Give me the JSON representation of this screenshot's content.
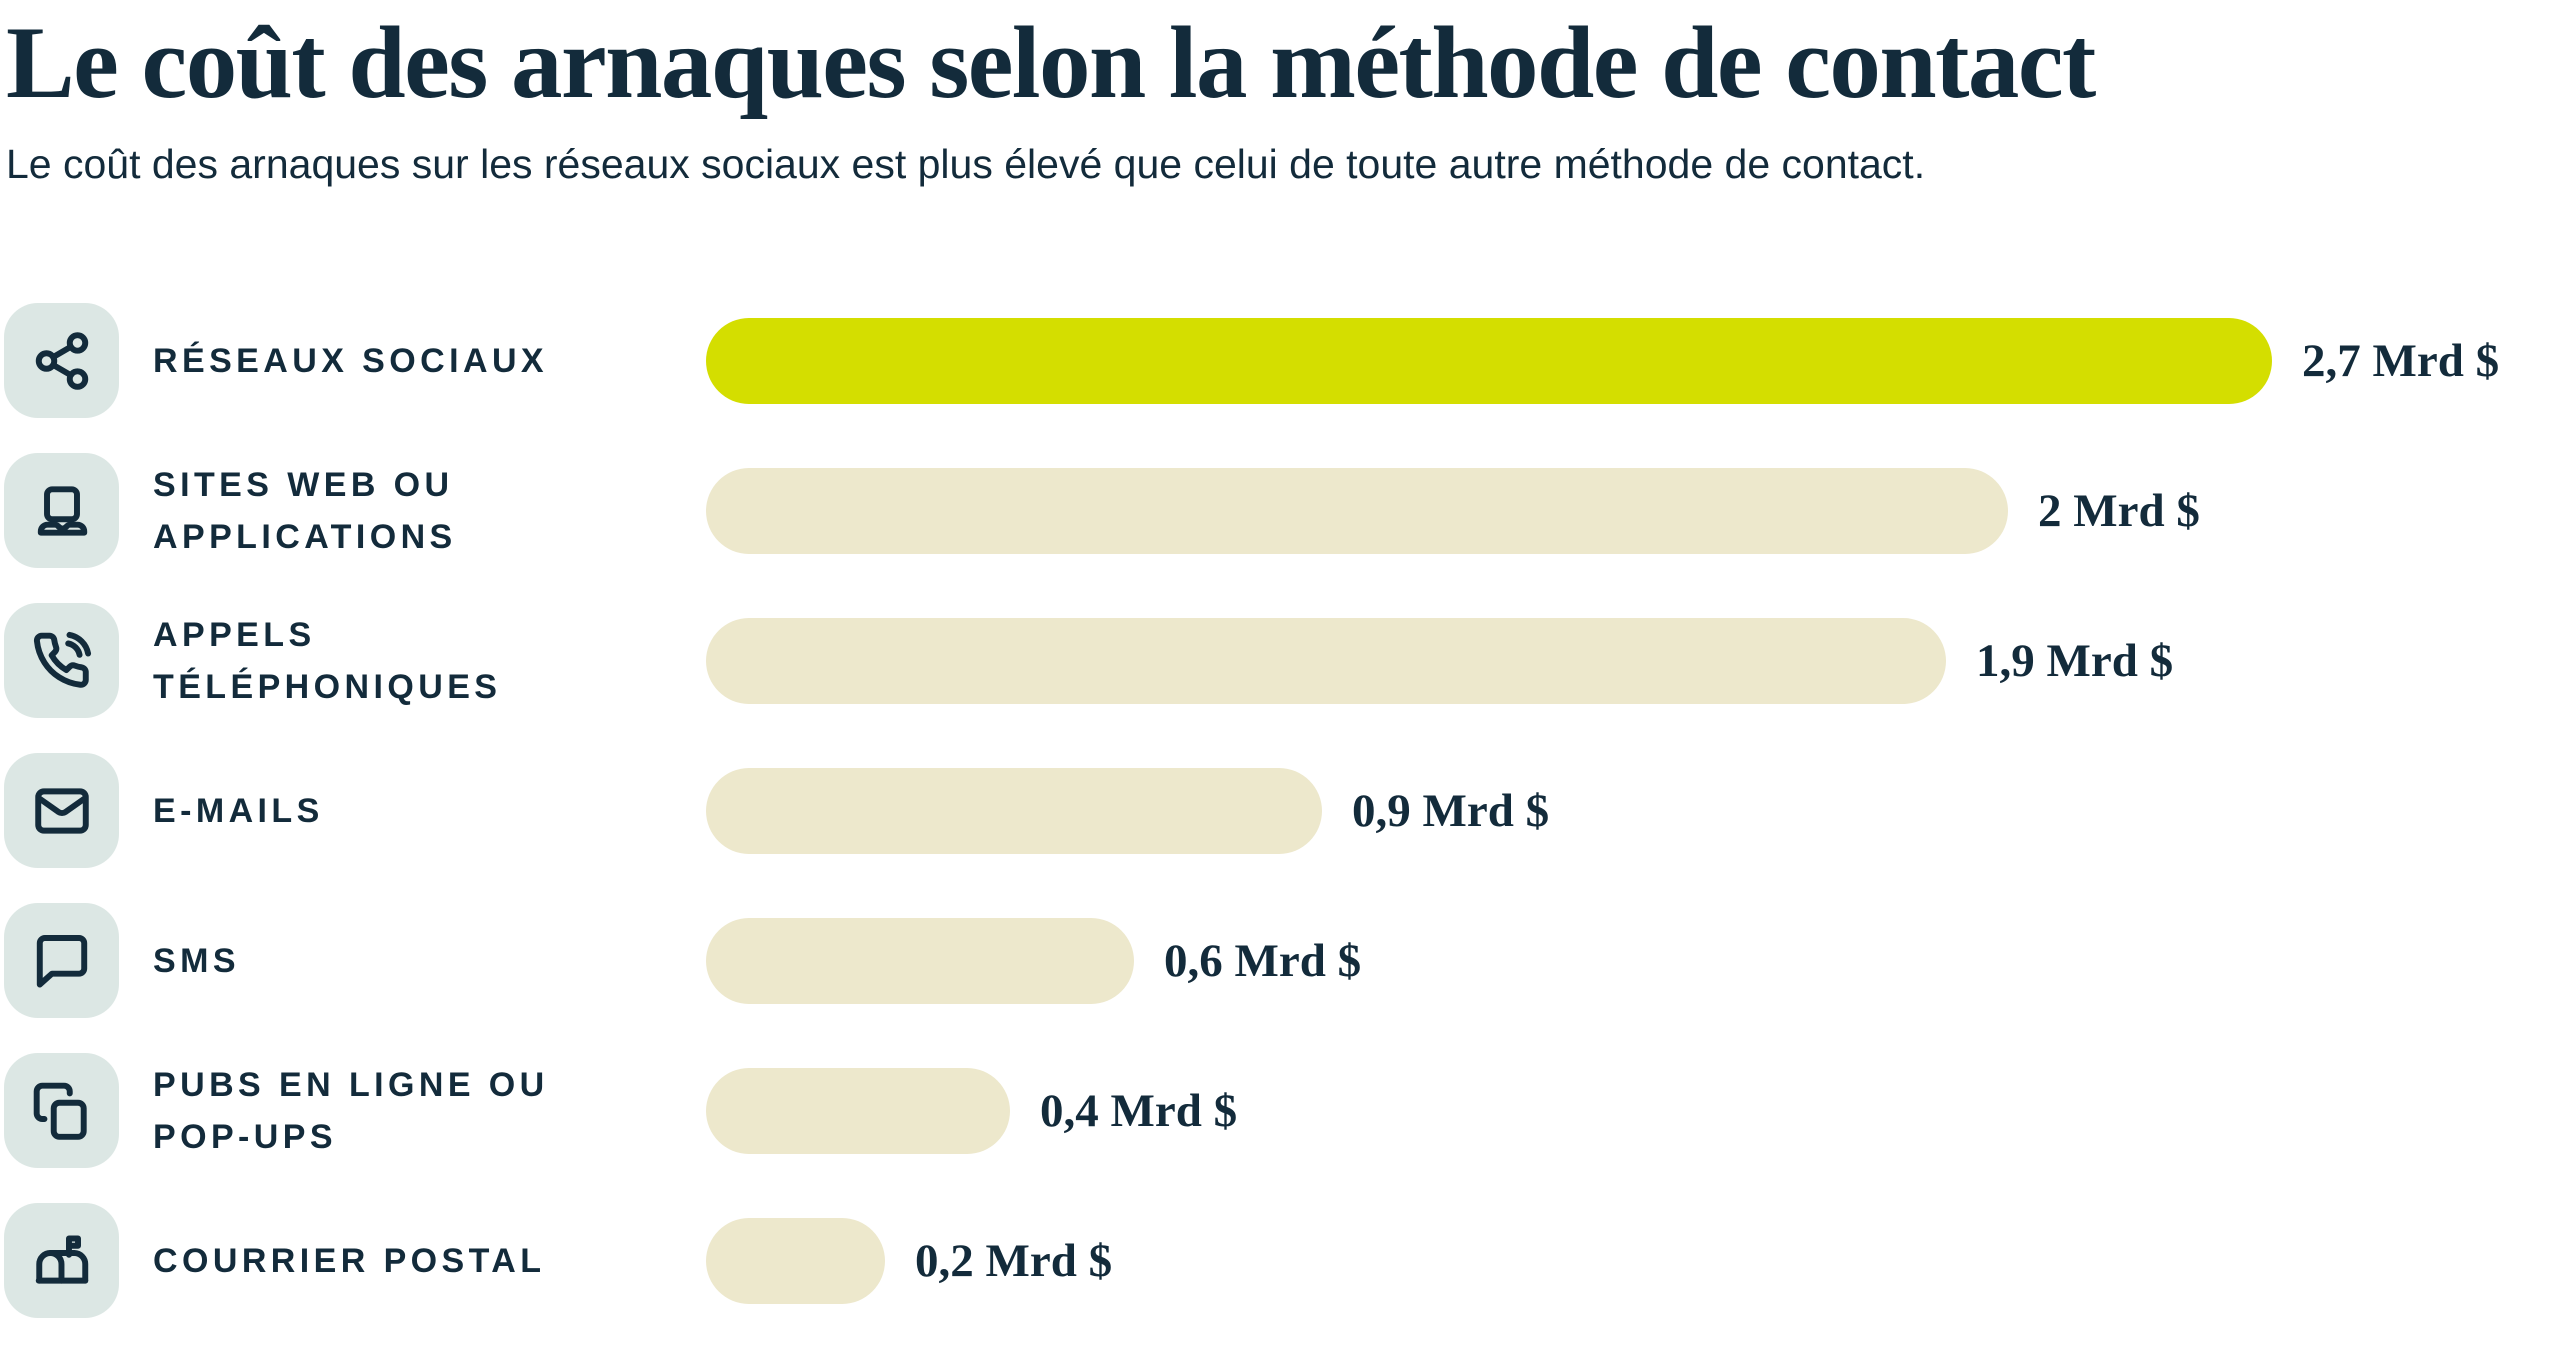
{
  "header": {
    "title": "Le coût des arnaques selon la méthode de contact",
    "subtitle": "Le coût des arnaques sur les réseaux sociaux est plus élevé que celui de toute autre méthode de contact."
  },
  "colors": {
    "page_bg": "#ffffff",
    "navy": "#132b3b",
    "highlight_bar": "#d4de00",
    "default_bar": "#ede8cc",
    "icon_tile_bg": "#dce7e4"
  },
  "chart_data": {
    "type": "bar",
    "orientation": "horizontal",
    "title": "Le coût des arnaques selon la méthode de contact",
    "subtitle": "Le coût des arnaques sur les réseaux sociaux est plus élevé que celui de toute autre méthode de contact.",
    "unit": "Mrd $",
    "xlim": [
      0,
      2.7
    ],
    "grid": false,
    "legend": false,
    "value_labels_position": "end-of-bar",
    "highlight_index": 0,
    "categories": [
      "RÉSEAUX SOCIAUX",
      "SITES WEB OU APPLICATIONS",
      "APPELS TÉLÉPHONIQUES",
      "E-MAILS",
      "SMS",
      "PUBS EN LIGNE OU POP-UPS",
      "COURRIER POSTAL"
    ],
    "values": [
      2.7,
      2,
      1.9,
      0.9,
      0.6,
      0.4,
      0.2
    ],
    "rows": [
      {
        "label": "RÉSEAUX SOCIAUX",
        "label_lines": [
          "RÉSEAUX SOCIAUX"
        ],
        "icon": "share-icon",
        "value": 2.7,
        "value_label": "2,7 Mrd $",
        "highlight": true
      },
      {
        "label": "SITES WEB OU APPLICATIONS",
        "label_lines": [
          "SITES WEB OU",
          "APPLICATIONS"
        ],
        "icon": "laptop-icon",
        "value": 2,
        "value_label": "2 Mrd $",
        "highlight": false
      },
      {
        "label": "APPELS TÉLÉPHONIQUES",
        "label_lines": [
          "APPELS",
          "TÉLÉPHONIQUES"
        ],
        "icon": "phone-call-icon",
        "value": 1.9,
        "value_label": "1,9 Mrd $",
        "highlight": false
      },
      {
        "label": "E-MAILS",
        "label_lines": [
          "E-MAILS"
        ],
        "icon": "mail-icon",
        "value": 0.9,
        "value_label": "0,9 Mrd $",
        "highlight": false
      },
      {
        "label": "SMS",
        "label_lines": [
          "SMS"
        ],
        "icon": "message-bubble-icon",
        "value": 0.6,
        "value_label": "0,6 Mrd $",
        "highlight": false
      },
      {
        "label": "PUBS EN LIGNE OU POP-UPS",
        "label_lines": [
          "PUBS EN LIGNE OU",
          "POP-UPS"
        ],
        "icon": "copy-windows-icon",
        "value": 0.4,
        "value_label": "0,4 Mrd $",
        "highlight": false
      },
      {
        "label": "COURRIER POSTAL",
        "label_lines": [
          "COURRIER POSTAL"
        ],
        "icon": "mailbox-icon",
        "value": 0.2,
        "value_label": "0,2 Mrd $",
        "highlight": false
      }
    ]
  }
}
